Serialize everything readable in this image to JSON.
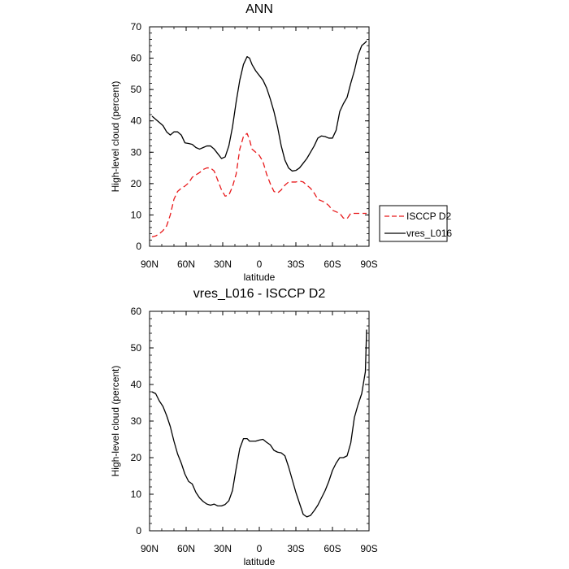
{
  "chart_data": [
    {
      "type": "line",
      "title": "ANN",
      "xlabel": "latitude",
      "ylabel": "High-level cloud (percent)",
      "xlim": [
        90,
        -90
      ],
      "ylim": [
        0,
        70
      ],
      "x_tick_values": [
        90,
        60,
        30,
        0,
        -30,
        -60,
        -90
      ],
      "x_tick_labels": [
        "90N",
        "60N",
        "30N",
        "0",
        "30S",
        "60S",
        "90S"
      ],
      "y_tick_values": [
        0,
        10,
        20,
        30,
        40,
        50,
        60,
        70
      ],
      "y_tick_labels": [
        "0",
        "10",
        "20",
        "30",
        "40",
        "50",
        "60",
        "70"
      ],
      "grid": false,
      "legend_position": "right",
      "series": [
        {
          "name": "ISCCP D2",
          "color": "#e8191b",
          "dash": "dashed",
          "x": [
            88,
            85,
            82,
            79,
            76,
            73,
            70,
            67,
            64,
            61,
            58,
            55,
            52,
            49,
            46,
            43,
            40,
            37,
            34,
            31,
            28,
            25,
            22,
            19,
            16,
            13,
            10,
            8,
            6,
            3,
            0,
            -3,
            -6,
            -9,
            -12,
            -15,
            -18,
            -21,
            -24,
            -27,
            -30,
            -33,
            -36,
            -39,
            -42,
            -45,
            -48,
            -51,
            -54,
            -57,
            -60,
            -63,
            -66,
            -69,
            -72,
            -75,
            -78,
            -81,
            -84,
            -87,
            -88
          ],
          "y": [
            3,
            3.3,
            4,
            5,
            6.5,
            10,
            15,
            17.5,
            18.5,
            19.2,
            20.2,
            22,
            22.8,
            23.5,
            24.5,
            25,
            25,
            24,
            21,
            18,
            16,
            16.3,
            19,
            23,
            31,
            35,
            36,
            34,
            31,
            30,
            29,
            27,
            23,
            20,
            17.5,
            17,
            18,
            19.5,
            20.5,
            20.5,
            20.5,
            20.8,
            20.5,
            19.5,
            18.5,
            17,
            15,
            14.5,
            14,
            13,
            11.5,
            11,
            10.5,
            9,
            8.8,
            10.5,
            10.5,
            10.5,
            10.5,
            10.5,
            10.5
          ]
        },
        {
          "name": "vres_L016",
          "color": "#000000",
          "dash": "solid",
          "x": [
            88,
            85,
            82,
            79,
            76,
            73,
            70,
            67,
            64,
            61,
            58,
            55,
            52,
            49,
            46,
            43,
            40,
            37,
            34,
            31,
            28,
            25,
            22,
            19,
            16,
            13,
            10,
            8,
            6,
            3,
            0,
            -3,
            -6,
            -9,
            -12,
            -15,
            -18,
            -21,
            -24,
            -27,
            -30,
            -33,
            -36,
            -39,
            -42,
            -45,
            -48,
            -51,
            -54,
            -57,
            -60,
            -63,
            -66,
            -69,
            -72,
            -75,
            -78,
            -81,
            -84,
            -87,
            -88
          ],
          "y": [
            41.5,
            40.5,
            39.5,
            38.5,
            36.5,
            35.5,
            36.5,
            36.5,
            35.5,
            33,
            32.8,
            32.5,
            31.5,
            31,
            31.5,
            32,
            32,
            31,
            29.5,
            28,
            28.5,
            32,
            38,
            46,
            53,
            58,
            60.5,
            60,
            58,
            56,
            54.5,
            53,
            50.5,
            47,
            43,
            38,
            32,
            27.5,
            25,
            24,
            24.2,
            25,
            26.5,
            28,
            30,
            32,
            34.5,
            35.2,
            35,
            34.5,
            34.5,
            37,
            43,
            45.5,
            47.5,
            52,
            56,
            61,
            64,
            65,
            65.5
          ]
        }
      ]
    },
    {
      "type": "line",
      "title": "vres_L016 - ISCCP D2",
      "xlabel": "latitude",
      "ylabel": "High-level cloud (percent)",
      "xlim": [
        90,
        -90
      ],
      "ylim": [
        0,
        60
      ],
      "x_tick_values": [
        90,
        60,
        30,
        0,
        -30,
        -60,
        -90
      ],
      "x_tick_labels": [
        "90N",
        "60N",
        "30N",
        "0",
        "30S",
        "60S",
        "90S"
      ],
      "y_tick_values": [
        0,
        10,
        20,
        30,
        40,
        50,
        60
      ],
      "y_tick_labels": [
        "0",
        "10",
        "20",
        "30",
        "40",
        "50",
        "60"
      ],
      "grid": false,
      "series": [
        {
          "color": "#000000",
          "dash": "solid",
          "x": [
            88,
            85,
            82,
            79,
            76,
            73,
            70,
            67,
            64,
            61,
            58,
            55,
            52,
            49,
            46,
            43,
            40,
            37,
            34,
            31,
            28,
            25,
            22,
            19,
            16,
            13,
            10,
            8,
            6,
            3,
            0,
            -3,
            -6,
            -9,
            -12,
            -15,
            -18,
            -21,
            -24,
            -27,
            -30,
            -33,
            -36,
            -39,
            -42,
            -45,
            -48,
            -51,
            -54,
            -57,
            -60,
            -63,
            -66,
            -69,
            -72,
            -75,
            -78,
            -81,
            -84,
            -87,
            -88
          ],
          "y": [
            38,
            37.5,
            35.5,
            34,
            31.5,
            28.5,
            24.5,
            21,
            18.5,
            15.5,
            13.5,
            12.8,
            10.5,
            9,
            8,
            7.3,
            7,
            7.3,
            6.8,
            6.8,
            7.2,
            8.2,
            11,
            17,
            22.5,
            25.2,
            25.2,
            24.5,
            24.5,
            24.5,
            24.8,
            25,
            24.2,
            23.5,
            22,
            21.5,
            21.3,
            20.5,
            17.5,
            14,
            10.5,
            7.5,
            4.5,
            3.8,
            4.2,
            5.5,
            7,
            9,
            11,
            13.5,
            16.5,
            18.5,
            20,
            20,
            20.5,
            24,
            31,
            34.5,
            37.5,
            43.5,
            55
          ]
        }
      ]
    }
  ],
  "legend": [
    {
      "label": "ISCCP D2"
    },
    {
      "label": "vres_L016"
    }
  ]
}
